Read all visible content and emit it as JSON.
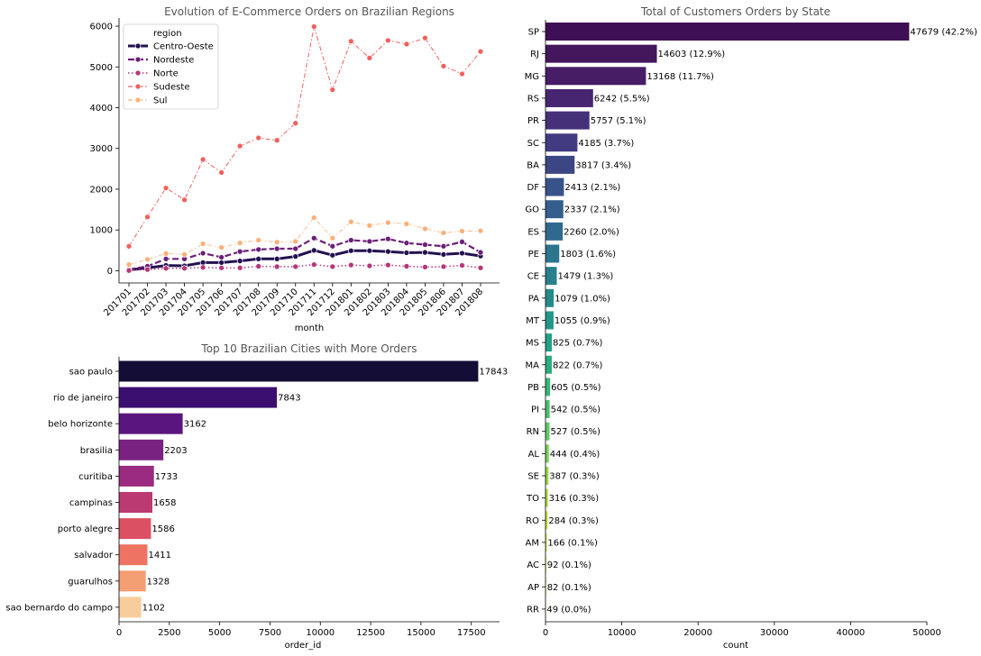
{
  "chart_data": [
    {
      "type": "line",
      "title": "Evolution of E-Commerce Orders on Brazilian Regions",
      "xlabel": "month",
      "ylabel": "",
      "ylim": [
        -300,
        6200
      ],
      "yticks": [
        0,
        1000,
        2000,
        3000,
        4000,
        5000,
        6000
      ],
      "x": [
        "201701",
        "201702",
        "201703",
        "201704",
        "201705",
        "201706",
        "201707",
        "201708",
        "201709",
        "201710",
        "201711",
        "201712",
        "201801",
        "201802",
        "201803",
        "201804",
        "201805",
        "201806",
        "201807",
        "201808"
      ],
      "legend_title": "region",
      "legend_position": "top-left",
      "series": [
        {
          "name": "Centro-Oeste",
          "color": "#221150",
          "dash": "solid",
          "width": 3,
          "values": [
            20,
            70,
            130,
            120,
            200,
            200,
            240,
            290,
            290,
            350,
            500,
            380,
            490,
            490,
            470,
            440,
            450,
            400,
            430,
            360
          ]
        },
        {
          "name": "Nordeste",
          "color": "#6c1f79",
          "dash": "dashed",
          "width": 2.2,
          "values": [
            30,
            110,
            290,
            290,
            430,
            330,
            470,
            520,
            540,
            540,
            800,
            600,
            750,
            720,
            780,
            680,
            640,
            600,
            710,
            450
          ]
        },
        {
          "name": "Norte",
          "color": "#b63679",
          "dash": "dotted",
          "width": 1.5,
          "values": [
            5,
            30,
            60,
            60,
            80,
            70,
            70,
            110,
            100,
            100,
            150,
            100,
            140,
            120,
            140,
            110,
            90,
            100,
            130,
            70
          ]
        },
        {
          "name": "Sudeste",
          "color": "#f1605d",
          "dash": "dashdot",
          "width": 1,
          "values": [
            600,
            1320,
            2030,
            1740,
            2730,
            2410,
            3060,
            3260,
            3200,
            3620,
            5990,
            4440,
            5630,
            5220,
            5650,
            5560,
            5710,
            5020,
            4830,
            5380
          ]
        },
        {
          "name": "Sul",
          "color": "#feb078",
          "dash": "dashdot",
          "width": 0.8,
          "values": [
            150,
            280,
            420,
            400,
            660,
            570,
            680,
            750,
            700,
            720,
            1300,
            800,
            1200,
            1110,
            1180,
            1150,
            1030,
            930,
            970,
            980
          ]
        }
      ]
    },
    {
      "type": "bar",
      "orientation": "horizontal",
      "title": "Top 10 Brazilian Cities with More Orders",
      "xlabel": "order_id",
      "ylabel": "",
      "xlim": [
        0,
        18900
      ],
      "xticks": [
        0,
        2500,
        5000,
        7500,
        10000,
        12500,
        15000,
        17500
      ],
      "categories": [
        "sao paulo",
        "rio de janeiro",
        "belo horizonte",
        "brasilia",
        "curitiba",
        "campinas",
        "porto alegre",
        "salvador",
        "guarulhos",
        "sao bernardo do campo"
      ],
      "values": [
        17843,
        7843,
        3162,
        2203,
        1733,
        1658,
        1586,
        1411,
        1328,
        1102
      ],
      "data_labels": [
        "17843",
        "7843",
        "3162",
        "2203",
        "1733",
        "1658",
        "1586",
        "1411",
        "1328",
        "1102"
      ],
      "colors": [
        "#140e36",
        "#3b0f70",
        "#5a167e",
        "#7a2282",
        "#9a2b80",
        "#bb3a72",
        "#dc5063",
        "#ef7362",
        "#f49e73",
        "#f7cd9b"
      ]
    },
    {
      "type": "bar",
      "orientation": "horizontal",
      "title": "Total of Customers Orders by State",
      "xlabel": "count",
      "ylabel": "",
      "xlim": [
        0,
        50000
      ],
      "xticks": [
        0,
        10000,
        20000,
        30000,
        40000,
        50000
      ],
      "categories": [
        "SP",
        "RJ",
        "MG",
        "RS",
        "PR",
        "SC",
        "BA",
        "DF",
        "GO",
        "ES",
        "PE",
        "CE",
        "PA",
        "MT",
        "MS",
        "MA",
        "PB",
        "PI",
        "RN",
        "AL",
        "SE",
        "TO",
        "RO",
        "AM",
        "AC",
        "AP",
        "RR"
      ],
      "values": [
        47679,
        14603,
        13168,
        6242,
        5757,
        4185,
        3817,
        2413,
        2337,
        2260,
        1803,
        1479,
        1079,
        1055,
        825,
        822,
        605,
        542,
        527,
        444,
        387,
        316,
        284,
        166,
        92,
        82,
        49
      ],
      "data_labels": [
        "47679 (42.2%)",
        "14603 (12.9%)",
        "13168 (11.7%)",
        "6242 (5.5%)",
        "5757 (5.1%)",
        "4185 (3.7%)",
        "3817 (3.4%)",
        "2413 (2.1%)",
        "2337 (2.1%)",
        "2260 (2.0%)",
        "1803 (1.6%)",
        "1479 (1.3%)",
        "1079 (1.0%)",
        "1055 (0.9%)",
        "825 (0.7%)",
        "822 (0.7%)",
        "605 (0.5%)",
        "542 (0.5%)",
        "527 (0.5%)",
        "444 (0.4%)",
        "387 (0.3%)",
        "316 (0.3%)",
        "284 (0.3%)",
        "166 (0.1%)",
        "92 (0.1%)",
        "82 (0.1%)",
        "49 (0.0%)"
      ],
      "colors": [
        "#3f0f55",
        "#44165c",
        "#471d66",
        "#472671",
        "#44317a",
        "#423b81",
        "#3d4685",
        "#38528a",
        "#345e8c",
        "#2f698d",
        "#2b758d",
        "#27808c",
        "#248b8a",
        "#219788",
        "#22a285",
        "#29ad7f",
        "#37b877",
        "#4ac16d",
        "#5fcb62",
        "#77d355",
        "#92da47",
        "#acdf38",
        "#c6e32d",
        "#dde62a",
        "#eee52b",
        "#f7e33a",
        "#fde74c"
      ]
    }
  ]
}
